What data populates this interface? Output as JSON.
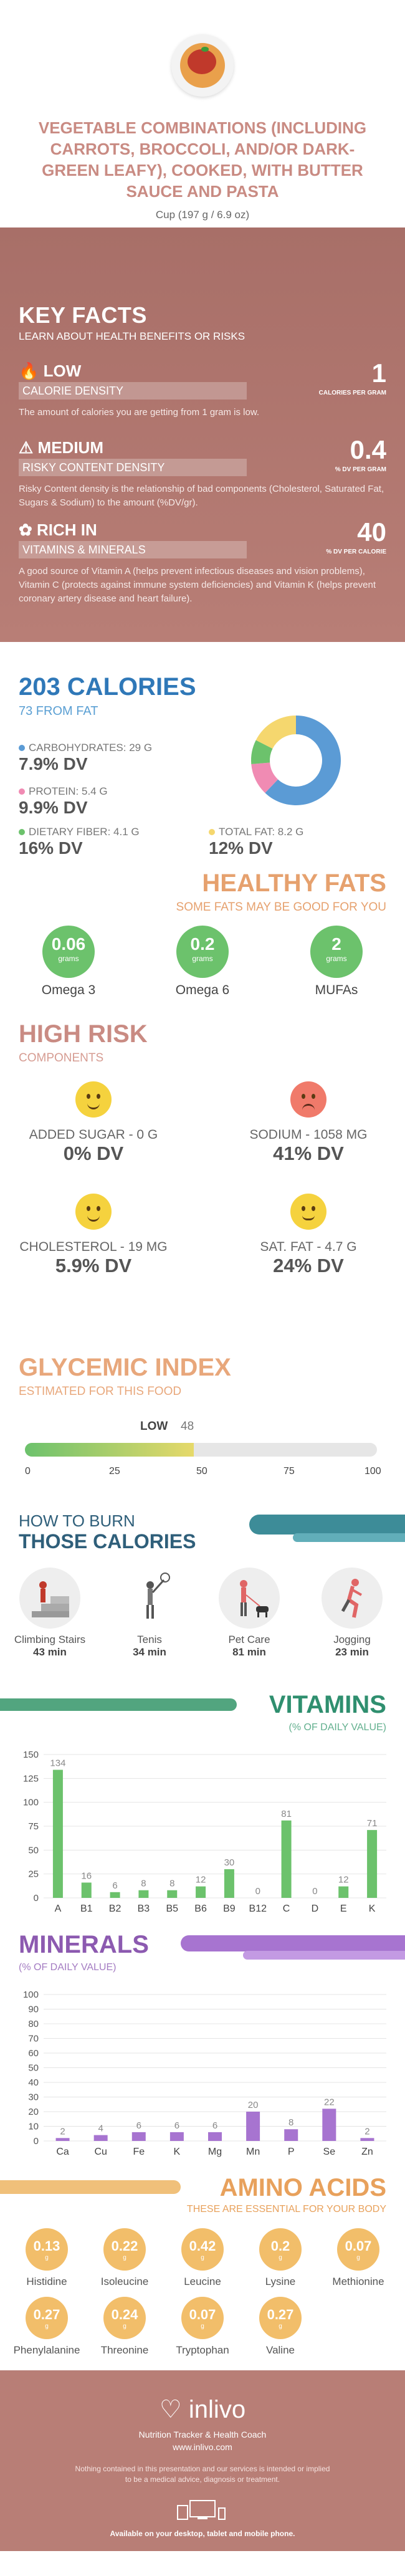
{
  "header": {
    "title": "VEGETABLE COMBINATIONS (INCLUDING CARROTS, BROCCOLI, AND/OR DARK-GREEN LEAFY), COOKED, WITH BUTTER SAUCE AND PASTA",
    "serving": "Cup (197 g / 6.9 oz)"
  },
  "key_facts": {
    "title": "KEY FACTS",
    "subtitle": "LEARN ABOUT HEALTH BENEFITS OR RISKS",
    "items": [
      {
        "level": "LOW",
        "name": "CALORIE DENSITY",
        "desc": "The amount of calories you are getting from 1 gram is low.",
        "value": "1",
        "unit": "CALORIES PER GRAM"
      },
      {
        "level": "MEDIUM",
        "name": "RISKY CONTENT DENSITY",
        "desc": "Risky Content density is the relationship of bad components (Cholesterol, Saturated Fat, Sugars & Sodium) to the amount (%DV/gr).",
        "value": "0.4",
        "unit": "% DV PER GRAM"
      },
      {
        "level": "RICH IN",
        "name": "VITAMINS & MINERALS",
        "desc": "A good source of Vitamin A (helps prevent infectious diseases and vision problems), Vitamin C (protects against immune system deficiencies) and Vitamin K (helps prevent coronary artery disease and heart failure).",
        "value": "40",
        "unit": "% DV PER CALORIE"
      }
    ]
  },
  "calories": {
    "total": "203 CALORIES",
    "from_fat": "73 FROM FAT",
    "nutrients": [
      {
        "label": "CARBOHYDRATES: 29 g",
        "dv": "7.9% DV",
        "color": "#5b9bd5",
        "grams": 29
      },
      {
        "label": "PROTEIN: 5.4 g",
        "dv": "9.9% DV",
        "color": "#f08bb3",
        "grams": 5.4
      },
      {
        "label": "DIETARY FIBER: 4.1 g",
        "dv": "16% DV",
        "color": "#6cc26c",
        "grams": 4.1
      },
      {
        "label": "TOTAL FAT: 8.2 g",
        "dv": "12% DV",
        "color": "#f5d76e",
        "grams": 8.2
      }
    ]
  },
  "healthy_fats": {
    "title": "HEALTHY FATS",
    "subtitle": "SOME FATS MAY BE GOOD FOR YOU",
    "items": [
      {
        "value": "0.06",
        "unit": "grams",
        "name": "Omega 3"
      },
      {
        "value": "0.2",
        "unit": "grams",
        "name": "Omega 6"
      },
      {
        "value": "2",
        "unit": "grams",
        "name": "MUFAs"
      }
    ]
  },
  "high_risk": {
    "title": "HIGH RISK",
    "subtitle": "COMPONENTS",
    "items": [
      {
        "label": "ADDED SUGAR - 0 g",
        "dv": "0% DV",
        "mood": "happy",
        "color": "#f5d23e"
      },
      {
        "label": "SODIUM - 1058 mg",
        "dv": "41% DV",
        "mood": "sad",
        "color": "#f07a6a"
      },
      {
        "label": "CHOLESTEROL - 19 mg",
        "dv": "5.9% DV",
        "mood": "happy",
        "color": "#f5d23e"
      },
      {
        "label": "SAT. FAT - 4.7 g",
        "dv": "24% DV",
        "mood": "neutral",
        "color": "#f5d23e"
      }
    ]
  },
  "glycemic": {
    "title": "GLYCEMIC INDEX",
    "subtitle": "ESTIMATED FOR THIS FOOD",
    "level": "LOW",
    "value": 48,
    "value_text": "48",
    "ticks": [
      "0",
      "25",
      "50",
      "75",
      "100"
    ]
  },
  "burn": {
    "title1": "HOW TO BURN",
    "title2": "THOSE CALORIES",
    "activities": [
      {
        "name": "Climbing Stairs",
        "minutes": "43 min",
        "icon": "stairs-icon"
      },
      {
        "name": "Tenis",
        "minutes": "34 min",
        "icon": "tennis-icon"
      },
      {
        "name": "Pet Care",
        "minutes": "81 min",
        "icon": "dog-walk-icon"
      },
      {
        "name": "Jogging",
        "minutes": "23 min",
        "icon": "jogging-icon"
      }
    ]
  },
  "vitamins": {
    "title": "VITAMINS",
    "subtitle": "(% OF DAILY VALUE)"
  },
  "minerals": {
    "title": "MINERALS",
    "subtitle": "(% OF DAILY VALUE)"
  },
  "amino_acids": {
    "title": "AMINO ACIDS",
    "subtitle": "THESE ARE ESSENTIAL FOR YOUR BODY",
    "items": [
      {
        "value": "0.13",
        "unit": "g",
        "name": "Histidine"
      },
      {
        "value": "0.22",
        "unit": "g",
        "name": "Isoleucine"
      },
      {
        "value": "0.42",
        "unit": "g",
        "name": "Leucine"
      },
      {
        "value": "0.2",
        "unit": "g",
        "name": "Lysine"
      },
      {
        "value": "0.07",
        "unit": "g",
        "name": "Methionine"
      },
      {
        "value": "0.27",
        "unit": "g",
        "name": "Phenylalanine"
      },
      {
        "value": "0.24",
        "unit": "g",
        "name": "Threonine"
      },
      {
        "value": "0.07",
        "unit": "g",
        "name": "Tryptophan"
      },
      {
        "value": "0.27",
        "unit": "g",
        "name": "Valine"
      }
    ]
  },
  "footer": {
    "brand": "inlivo",
    "tagline": "Nutrition Tracker & Health Coach",
    "url": "www.inlivo.com",
    "disclaimer": "Nothing contained in this presentation and our services is intended or implied to be a medical advice, diagnosis or treatment.",
    "available": "Available on your desktop, tablet and mobile phone."
  },
  "chart_data": [
    {
      "type": "pie",
      "categories": [
        "Carbohydrates",
        "Protein",
        "Dietary Fiber",
        "Total Fat"
      ],
      "values": [
        29,
        5.4,
        4.1,
        8.2
      ],
      "colors": [
        "#5b9bd5",
        "#f08bb3",
        "#6cc26c",
        "#f5d76e"
      ]
    },
    {
      "type": "bar",
      "title": "VITAMINS",
      "categories": [
        "A",
        "B1",
        "B2",
        "B3",
        "B5",
        "B6",
        "B9",
        "B12",
        "C",
        "D",
        "E",
        "K"
      ],
      "values": [
        134,
        16,
        6,
        8,
        8,
        12,
        30,
        0,
        81,
        0,
        12,
        71
      ],
      "ylim": [
        0,
        150
      ],
      "yticks": [
        "0",
        "25",
        "50",
        "75",
        "100",
        "125",
        "150"
      ],
      "color": "#6cc26c"
    },
    {
      "type": "bar",
      "title": "MINERALS",
      "categories": [
        "Ca",
        "Cu",
        "Fe",
        "K",
        "Mg",
        "Mn",
        "P",
        "Se",
        "Zn"
      ],
      "values": [
        2,
        4,
        6,
        6,
        6,
        20,
        8,
        22,
        2
      ],
      "ylim": [
        0,
        100
      ],
      "yticks": [
        "0",
        "10",
        "20",
        "30",
        "40",
        "50",
        "60",
        "70",
        "80",
        "90",
        "100"
      ],
      "color": "#a774d0"
    }
  ]
}
